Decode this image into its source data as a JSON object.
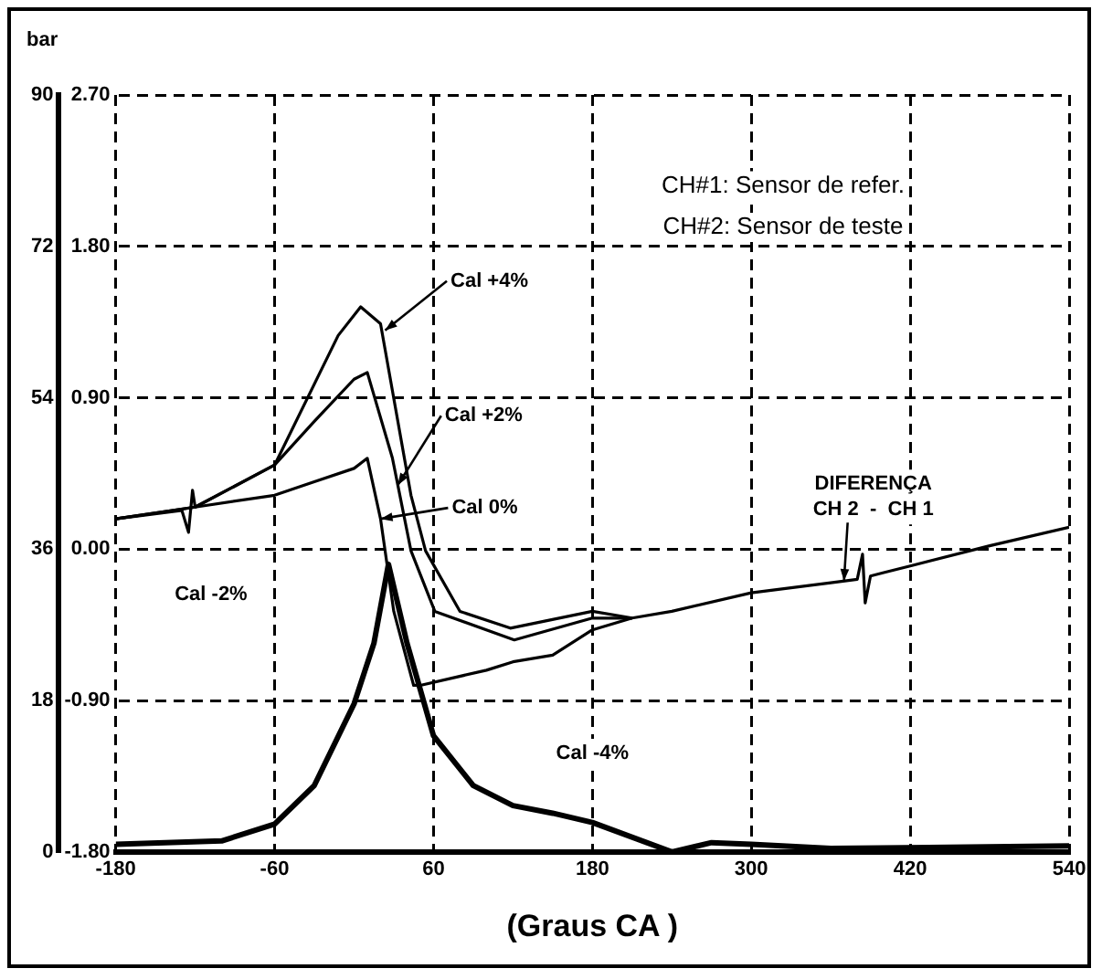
{
  "chart_data": {
    "type": "line",
    "xlabel": "(Graus CA )",
    "ylabel": "bar",
    "xlim": [
      -180,
      540
    ],
    "xticks": [
      -180,
      -60,
      60,
      180,
      300,
      420,
      540
    ],
    "ylim": [
      0,
      90
    ],
    "yticks": [
      0,
      18,
      36,
      54,
      72,
      90
    ],
    "y2lim": [
      -1.8,
      2.7
    ],
    "y2ticks": [
      {
        "value": -1.8,
        "label": "-1.80"
      },
      {
        "value": -0.9,
        "label": "-0.90"
      },
      {
        "value": 0,
        "label": "0.00"
      },
      {
        "value": 0.9,
        "label": "0.90"
      },
      {
        "value": 1.8,
        "label": "1.80"
      },
      {
        "value": 2.7,
        "label": "2.70"
      }
    ],
    "grid": true,
    "legend": false,
    "marker": "none",
    "line_style": "solid",
    "series": [
      {
        "color": "#000000",
        "x": [
          -180,
          -100,
          -60,
          -30,
          0,
          15,
          26,
          40,
          60,
          90,
          120,
          150,
          180,
          240,
          270,
          300,
          360,
          540
        ],
        "values": [
          0.9,
          1.3,
          3.3,
          7.9,
          17.6,
          24.8,
          34.2,
          24.8,
          13.8,
          7.9,
          5.5,
          4.6,
          3.5,
          0,
          1.1,
          0.9,
          0.4,
          0.7
        ]
      },
      {
        "color": "#000000",
        "axis": "y2",
        "x": [
          -180,
          -130,
          -125,
          -122,
          -120,
          -60,
          -30,
          0,
          10,
          20,
          30,
          45,
          50,
          100,
          120,
          150,
          180,
          210,
          240,
          300,
          360,
          380,
          384,
          386,
          390,
          400,
          420,
          480,
          540
        ],
        "values": [
          0.18,
          0.23,
          0.1,
          0.35,
          0.25,
          0.32,
          0.4,
          0.48,
          0.54,
          0.18,
          -0.37,
          -0.81,
          -0.81,
          -0.72,
          -0.67,
          -0.63,
          -0.48,
          -0.41,
          -0.37,
          -0.26,
          -0.2,
          -0.18,
          -0.03,
          -0.32,
          -0.16,
          -0.14,
          -0.1,
          0.02,
          0.13
        ]
      },
      {
        "color": "#000000",
        "axis": "y2",
        "x": [
          -180,
          -120,
          -60,
          -30,
          0,
          10,
          29,
          43,
          61,
          121,
          180,
          210
        ],
        "values": [
          0.18,
          0.25,
          0.5,
          0.76,
          1.01,
          1.05,
          0.54,
          -0.01,
          -0.37,
          -0.54,
          -0.41,
          -0.41
        ]
      },
      {
        "color": "#000000",
        "axis": "y2",
        "x": [
          -180,
          -120,
          -60,
          -12,
          5,
          20,
          43,
          54,
          80,
          118,
          180,
          210
        ],
        "values": [
          0.18,
          0.25,
          0.5,
          1.27,
          1.44,
          1.34,
          0.32,
          -0.01,
          -0.37,
          -0.47,
          -0.37,
          -0.41
        ]
      }
    ],
    "annotations": [
      "CH#1: Sensor de refer.",
      "CH#2: Sensor de teste",
      {
        "text": "Cal +4%",
        "x": 23.5,
        "y": 62
      },
      {
        "text": "Cal +2%",
        "x": 33,
        "y": 43.6
      },
      {
        "text": "Cal 0%",
        "x": 20,
        "y": 39.6
      },
      "Cal -2%",
      "Cal -4%",
      {
        "text": "DIFERENÇA\nCH 2  -  CH 1",
        "x": 370,
        "y": 32.2
      }
    ]
  }
}
